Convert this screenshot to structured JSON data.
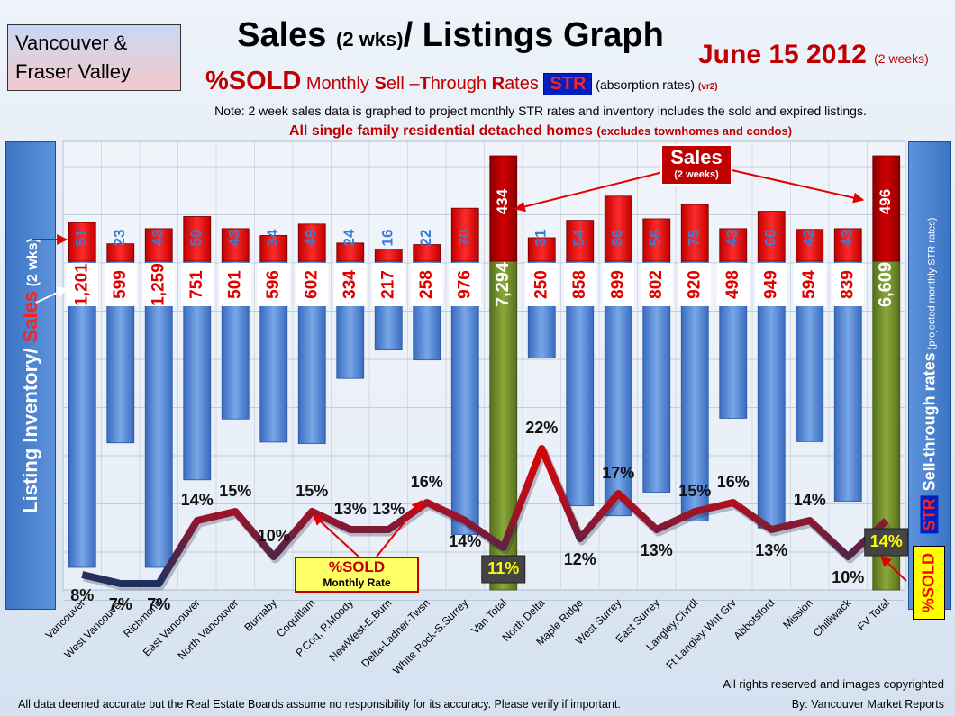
{
  "header": {
    "region_line1": "Vancouver &",
    "region_line2": "Fraser Valley",
    "title_a": "Sales ",
    "title_b": "(2 wks)",
    "title_c": "/ Listings Graph",
    "date_main": "June 15 2012",
    "date_sub": "(2 weeks)",
    "sub_pct": "%SOLD",
    "sub_monthly": " Monthly ",
    "sub_s": "S",
    "sub_ell": "ell –",
    "sub_t": "T",
    "sub_hrough": "hrough ",
    "sub_r": "R",
    "sub_ates": "ates ",
    "sub_str": "STR",
    "sub_abs": " (absorption rates) ",
    "sub_vr": "(vr2)",
    "note": "Note: 2 week sales data is graphed to project monthly STR rates and inventory includes the sold and expired listings.",
    "excl_a": "All single family residential detached homes ",
    "excl_b": "(excludes townhomes and condos)"
  },
  "axes": {
    "left_a": "Listing Inventory/ ",
    "left_b": "Sales",
    "left_c": "  (2 wks)",
    "right_str": "STR",
    "right_a": " Sell-through rates",
    "right_b": "   (projected monthly STR rates)",
    "pct_badge": "%SOLD"
  },
  "callouts": {
    "sold_a": "%SOLD",
    "sold_b": "Monthly Rate",
    "sales_a": "Sales",
    "sales_b": "(2 weeks)"
  },
  "footer": {
    "rights": "All rights reserved and  images copyrighted",
    "disclaimer": "All data deemed accurate but the Real Estate Boards assume no responsibility for its accuracy.  Please verify if important.",
    "by": "By: Vancouver Market Reports"
  },
  "colors": {
    "inventory": "#4a7fcf",
    "sales": "#e00000",
    "total_bar": "#6f8a2a",
    "total_sales": "#b80000",
    "line_low": "#1a3160",
    "line_high": "#e00000"
  },
  "chart_data": {
    "type": "bar",
    "categories": [
      "Vancouver",
      "West Vancouver",
      "Richmond",
      "East Vancouver",
      "North Vancouver",
      "Burnaby",
      "Coquitlam",
      "P.Coq, P.Moody",
      "NewWest-E.Burn",
      "Delta-Ladner-Twsn",
      "White Rock-S.Surrey",
      "Van Total",
      "North Delta",
      "Maple Ridge",
      "West Surrey",
      "East Surrey",
      "Langley,Clvrdl",
      "Ft Langley-Wnt Grv",
      "Abbotsford",
      "Mission",
      "Chilliwack",
      "FV Total"
    ],
    "series": [
      {
        "name": "Listing Inventory",
        "values": [
          1201,
          599,
          1259,
          751,
          501,
          596,
          602,
          334,
          217,
          258,
          976,
          7294,
          250,
          858,
          899,
          802,
          920,
          498,
          949,
          594,
          839,
          6609
        ]
      },
      {
        "name": "Sales",
        "values": [
          51,
          23,
          43,
          59,
          43,
          34,
          49,
          24,
          16,
          22,
          70,
          434,
          31,
          54,
          86,
          56,
          75,
          43,
          66,
          42,
          43,
          496
        ]
      },
      {
        "name": "%SOLD",
        "values": [
          8,
          7,
          7,
          14,
          15,
          10,
          15,
          13,
          13,
          16,
          14,
          11,
          22,
          12,
          17,
          13,
          15,
          16,
          13,
          14,
          10,
          14
        ]
      }
    ],
    "value_labels_inventory": [
      "1,201",
      "599",
      "1,259",
      "751",
      "501",
      "596",
      "602",
      "334",
      "217",
      "258",
      "976",
      "7,294",
      "250",
      "858",
      "899",
      "802",
      "920",
      "498",
      "949",
      "594",
      "839",
      "6,609"
    ],
    "value_labels_sales": [
      "51",
      "23",
      "43",
      "59",
      "43",
      "34",
      "49",
      "24",
      "16",
      "22",
      "70",
      "434",
      "31",
      "54",
      "86",
      "56",
      "75",
      "43",
      "66",
      "42",
      "43",
      "496"
    ],
    "value_labels_pct": [
      "8%",
      "7%",
      "7%",
      "14%",
      "15%",
      "10%",
      "15%",
      "13%",
      "13%",
      "16%",
      "14%",
      "11%",
      "22%",
      "12%",
      "17%",
      "13%",
      "15%",
      "16%",
      "13%",
      "14%",
      "10%",
      "14%"
    ],
    "total_indices": [
      11,
      21
    ],
    "grid": true
  }
}
